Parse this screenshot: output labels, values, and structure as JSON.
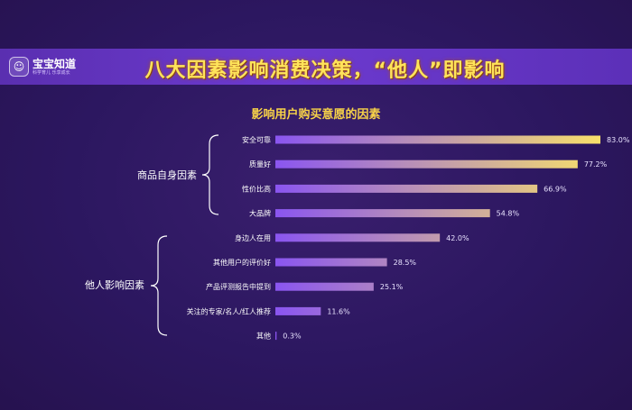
{
  "logo": {
    "name": "宝宝知道",
    "slogan": "科学育儿 乐享成长"
  },
  "headline": "八大因素影响消费决策，“他人”即影响",
  "chart_data": {
    "type": "bar",
    "orientation": "horizontal",
    "title": "影响用户购买意愿的因素",
    "groups": [
      {
        "name": "商品自身因素",
        "categories": [
          "安全可靠",
          "质量好",
          "性价比高",
          "大品牌"
        ]
      },
      {
        "name": "他人影响因素",
        "categories": [
          "身边人在用",
          "其他用户的评价好",
          "产品评测报告中提到",
          "关注的专家/名人/红人推荐"
        ]
      }
    ],
    "categories": [
      "安全可靠",
      "质量好",
      "性价比高",
      "大品牌",
      "身边人在用",
      "其他用户的评价好",
      "产品评测报告中提到",
      "关注的专家/名人/红人推荐",
      "其他"
    ],
    "values": [
      83.0,
      77.2,
      66.9,
      54.8,
      42.0,
      28.5,
      25.1,
      11.6,
      0.3
    ],
    "value_labels": [
      "83.0%",
      "77.2%",
      "66.9%",
      "54.8%",
      "42.0%",
      "28.5%",
      "25.1%",
      "11.6%",
      "0.3%"
    ],
    "xlim": [
      0,
      83
    ],
    "grid": false,
    "colors": {
      "start": "#8a55f0",
      "end": "#f8e06a"
    }
  }
}
